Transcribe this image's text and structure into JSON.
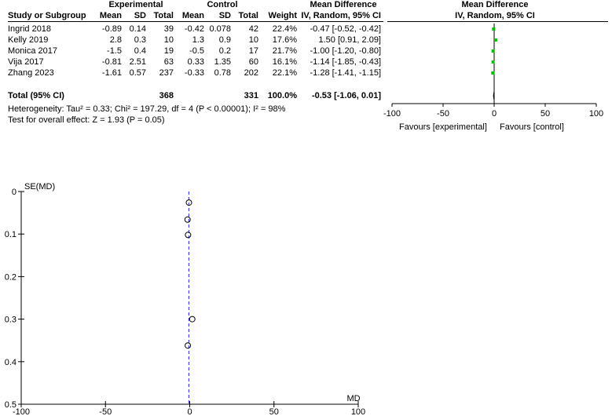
{
  "forest": {
    "group_headers": {
      "experimental": "Experimental",
      "control": "Control",
      "mean_difference": "Mean Difference",
      "plot_title": "Mean Difference"
    },
    "column_headers": {
      "study": "Study or Subgroup",
      "exp_mean": "Mean",
      "exp_sd": "SD",
      "exp_total": "Total",
      "ctl_mean": "Mean",
      "ctl_sd": "SD",
      "ctl_total": "Total",
      "weight": "Weight",
      "method": "IV, Random, 95% CI",
      "plot_method": "IV, Random, 95% CI"
    },
    "studies": [
      {
        "name": "Ingrid 2018",
        "exp_mean": "-0.89",
        "exp_sd": "0.14",
        "exp_total": "39",
        "ctl_mean": "-0.42",
        "ctl_sd": "0.078",
        "ctl_total": "42",
        "weight": "22.4%",
        "ci_text": "-0.47 [-0.52, -0.42]"
      },
      {
        "name": "Kelly 2019",
        "exp_mean": "2.8",
        "exp_sd": "0.3",
        "exp_total": "10",
        "ctl_mean": "1.3",
        "ctl_sd": "0.9",
        "ctl_total": "10",
        "weight": "17.6%",
        "ci_text": "1.50 [0.91, 2.09]"
      },
      {
        "name": "Monica 2017",
        "exp_mean": "-1.5",
        "exp_sd": "0.4",
        "exp_total": "19",
        "ctl_mean": "-0.5",
        "ctl_sd": "0.2",
        "ctl_total": "17",
        "weight": "21.7%",
        "ci_text": "-1.00 [-1.20, -0.80]"
      },
      {
        "name": "Vija 2017",
        "exp_mean": "-0.81",
        "exp_sd": "2.51",
        "exp_total": "63",
        "ctl_mean": "0.33",
        "ctl_sd": "1.35",
        "ctl_total": "60",
        "weight": "16.1%",
        "ci_text": "-1.14 [-1.85, -0.43]"
      },
      {
        "name": "Zhang 2023",
        "exp_mean": "-1.61",
        "exp_sd": "0.57",
        "exp_total": "237",
        "ctl_mean": "-0.33",
        "ctl_sd": "0.78",
        "ctl_total": "202",
        "weight": "22.1%",
        "ci_text": "-1.28 [-1.41, -1.15]"
      }
    ],
    "total": {
      "label": "Total (95% CI)",
      "exp_total": "368",
      "ctl_total": "331",
      "weight": "100.0%",
      "ci_text": "-0.53 [-1.06, 0.01]"
    },
    "heterogeneity": "Heterogeneity: Tau² = 0.33; Chi² = 197.29, df = 4 (P < 0.00001); I² = 98%",
    "overall_effect": "Test for overall effect: Z = 1.93 (P = 0.05)",
    "favours_left": "Favours [experimental]",
    "favours_right": "Favours [control]"
  },
  "chart_data": [
    {
      "type": "scatter",
      "subtype": "forest",
      "xlim": [
        -100,
        100
      ],
      "x_ticks": [
        "-100",
        "-50",
        "0",
        "50",
        "100"
      ],
      "x_tick_values": [
        -100,
        -50,
        0,
        50,
        100
      ],
      "points": [
        {
          "study": "Ingrid 2018",
          "md": -0.47,
          "lo": -0.52,
          "hi": -0.42,
          "weight": 22.4
        },
        {
          "study": "Kelly 2019",
          "md": 1.5,
          "lo": 0.91,
          "hi": 2.09,
          "weight": 17.6
        },
        {
          "study": "Monica 2017",
          "md": -1.0,
          "lo": -1.2,
          "hi": -0.8,
          "weight": 21.7
        },
        {
          "study": "Vija 2017",
          "md": -1.14,
          "lo": -1.85,
          "hi": -0.43,
          "weight": 16.1
        },
        {
          "study": "Zhang 2023",
          "md": -1.28,
          "lo": -1.41,
          "hi": -1.15,
          "weight": 22.1
        }
      ],
      "pooled": {
        "md": -0.53,
        "lo": -1.06,
        "hi": 0.01
      },
      "marker_color": "#00c000",
      "diamond_color": "#000000"
    },
    {
      "type": "scatter",
      "subtype": "funnel",
      "xlabel": "MD",
      "ylabel": "SE(MD)",
      "xlim": [
        -100,
        100
      ],
      "ylim": [
        0,
        0.5
      ],
      "y_inverted": true,
      "x_ticks": [
        "-100",
        "-50",
        "0",
        "50",
        "100"
      ],
      "x_tick_values": [
        -100,
        -50,
        0,
        50,
        100
      ],
      "y_ticks": [
        "0",
        "0.1",
        "0.2",
        "0.3",
        "0.4",
        "0.5"
      ],
      "y_tick_values": [
        0,
        0.1,
        0.2,
        0.3,
        0.4,
        0.5
      ],
      "points": [
        {
          "md": -0.47,
          "se": 0.026
        },
        {
          "md": 1.5,
          "se": 0.3
        },
        {
          "md": -1.0,
          "se": 0.102
        },
        {
          "md": -1.14,
          "se": 0.362
        },
        {
          "md": -1.28,
          "se": 0.066
        }
      ],
      "pooled_line": -0.53,
      "line_color": "#2222cc"
    }
  ]
}
